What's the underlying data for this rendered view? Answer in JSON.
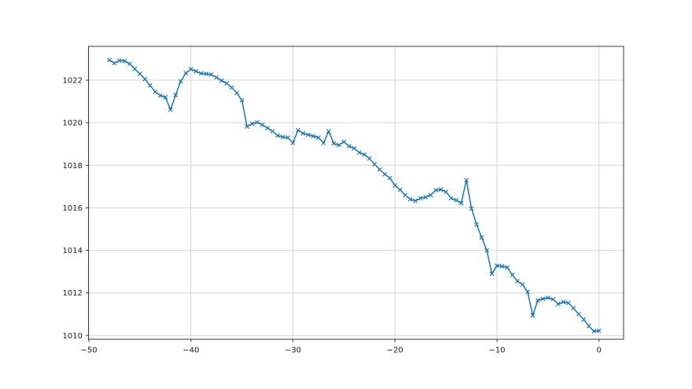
{
  "figure": {
    "background": "#ffffff"
  },
  "chart_data": {
    "type": "line",
    "title": "",
    "subtitle": "",
    "xlabel": "",
    "ylabel": "",
    "legend": null,
    "grid": true,
    "grid_color": "#d4d4d4",
    "spine_color": "#3a3a3a",
    "tick_color": "#3a3a3a",
    "tick_label_color": "#1a1a1a",
    "xlim": [
      -50.04,
      2.41
    ],
    "ylim": [
      1009.82,
      1023.59
    ],
    "xticks": [
      -50,
      -40,
      -30,
      -20,
      -10,
      0
    ],
    "xtick_labels": [
      "−50",
      "−40",
      "−30",
      "−20",
      "−10",
      "0"
    ],
    "yticks": [
      1010,
      1012,
      1014,
      1016,
      1018,
      1020,
      1022
    ],
    "ytick_labels": [
      "1010",
      "1012",
      "1014",
      "1016",
      "1018",
      "1020",
      "1022"
    ],
    "series": [
      {
        "name": "pressure-series",
        "color": "#1f77b4",
        "marker": "x",
        "line_width": 1.5,
        "x": [
          -48,
          -47.5,
          -47,
          -46.5,
          -46,
          -45.5,
          -45,
          -44.5,
          -44,
          -43.5,
          -43,
          -42.5,
          -42,
          -41.5,
          -41,
          -40.5,
          -40,
          -39.5,
          -39,
          -38.5,
          -38,
          -37.5,
          -37,
          -36.5,
          -36,
          -35.5,
          -35,
          -34.5,
          -34,
          -33.5,
          -33,
          -32.5,
          -32,
          -31.5,
          -31,
          -30.5,
          -30,
          -29.5,
          -29,
          -28.5,
          -28,
          -27.5,
          -27,
          -26.5,
          -26,
          -25.5,
          -25,
          -24.5,
          -24,
          -23.5,
          -23,
          -22.5,
          -22,
          -21.5,
          -21,
          -20.5,
          -20,
          -19.5,
          -19,
          -18.5,
          -18,
          -17.5,
          -17,
          -16.5,
          -16,
          -15.5,
          -15,
          -14.5,
          -14,
          -13.5,
          -13,
          -12.5,
          -12,
          -11.5,
          -11,
          -10.5,
          -10,
          -9.5,
          -9,
          -8.5,
          -8,
          -7.5,
          -7,
          -6.5,
          -6,
          -5.5,
          -5,
          -4.5,
          -4,
          -3.5,
          -3,
          -2.5,
          -2,
          -1.5,
          -1,
          -0.5,
          0
        ],
        "y": [
          1022.95,
          1022.8,
          1022.92,
          1022.9,
          1022.77,
          1022.53,
          1022.3,
          1022.05,
          1021.75,
          1021.45,
          1021.28,
          1021.2,
          1020.62,
          1021.3,
          1021.95,
          1022.33,
          1022.52,
          1022.42,
          1022.32,
          1022.3,
          1022.26,
          1022.13,
          1021.98,
          1021.85,
          1021.65,
          1021.4,
          1021.05,
          1019.82,
          1019.95,
          1020.02,
          1019.9,
          1019.75,
          1019.6,
          1019.4,
          1019.33,
          1019.3,
          1019.05,
          1019.65,
          1019.5,
          1019.43,
          1019.37,
          1019.3,
          1019.05,
          1019.6,
          1019.03,
          1018.95,
          1019.1,
          1018.9,
          1018.8,
          1018.6,
          1018.5,
          1018.32,
          1018.05,
          1017.8,
          1017.58,
          1017.4,
          1017.05,
          1016.85,
          1016.6,
          1016.4,
          1016.33,
          1016.45,
          1016.5,
          1016.6,
          1016.83,
          1016.86,
          1016.75,
          1016.45,
          1016.36,
          1016.22,
          1017.3,
          1015.97,
          1015.22,
          1014.6,
          1014,
          1012.9,
          1013.28,
          1013.25,
          1013.2,
          1012.85,
          1012.55,
          1012.4,
          1012.05,
          1010.94,
          1011.65,
          1011.72,
          1011.77,
          1011.7,
          1011.48,
          1011.57,
          1011.53,
          1011.28,
          1011,
          1010.75,
          1010.44,
          1010.2,
          1010.22
        ]
      }
    ]
  }
}
